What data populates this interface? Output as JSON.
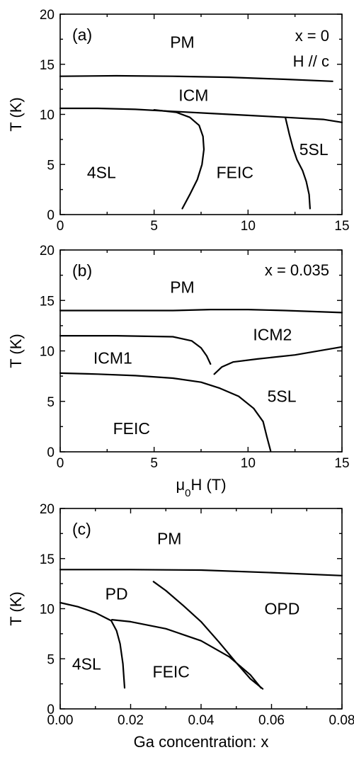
{
  "chart_data": [
    {
      "type": "line",
      "panel_label": "(a)",
      "annotations": [
        "x = 0",
        "H // c"
      ],
      "xlabel": "",
      "ylabel": "T (K)",
      "xlim": [
        0,
        15
      ],
      "ylim": [
        0,
        20
      ],
      "xticks": [
        "0",
        "5",
        "10",
        "15"
      ],
      "yticks": [
        "0",
        "5",
        "10",
        "15",
        "20"
      ],
      "regions": [
        {
          "label": "PM",
          "x": 6.5,
          "y": 17.2
        },
        {
          "label": "ICM",
          "x": 7.1,
          "y": 11.9
        },
        {
          "label": "5SL",
          "x": 13.5,
          "y": 6.5
        },
        {
          "label": "4SL",
          "x": 2.2,
          "y": 4.2
        },
        {
          "label": "FEIC",
          "x": 9.3,
          "y": 4.2
        }
      ],
      "boundaries": [
        {
          "x": [
            0,
            3,
            6,
            9,
            12,
            14.5
          ],
          "y": [
            13.8,
            13.85,
            13.8,
            13.7,
            13.5,
            13.3
          ]
        },
        {
          "x": [
            0,
            2,
            4,
            6,
            8,
            10,
            12,
            13,
            14,
            15
          ],
          "y": [
            10.6,
            10.6,
            10.5,
            10.3,
            10.1,
            9.9,
            9.7,
            9.6,
            9.5,
            9.2
          ]
        },
        {
          "x": [
            6.5,
            6.9,
            7.3,
            7.55,
            7.65,
            7.6,
            7.4,
            6.9,
            6.2,
            5.0
          ],
          "y": [
            0.6,
            2.0,
            3.5,
            5.0,
            6.5,
            7.8,
            8.9,
            9.7,
            10.2,
            10.45
          ]
        },
        {
          "x": [
            13.3,
            13.25,
            13.1,
            12.9,
            12.6,
            12.4,
            12.2,
            12.0
          ],
          "y": [
            0.6,
            2.0,
            3.3,
            4.4,
            5.5,
            6.6,
            8.0,
            9.6
          ]
        }
      ]
    },
    {
      "type": "line",
      "panel_label": "(b)",
      "annotations": [
        "x = 0.035"
      ],
      "xlabel": "μ0H (T)",
      "ylabel": "T (K)",
      "xlim": [
        0,
        15
      ],
      "ylim": [
        0,
        20
      ],
      "xticks": [
        "0",
        "5",
        "10",
        "15"
      ],
      "yticks": [
        "0",
        "5",
        "10",
        "15",
        "20"
      ],
      "regions": [
        {
          "label": "PM",
          "x": 6.5,
          "y": 16.3
        },
        {
          "label": "ICM1",
          "x": 2.8,
          "y": 9.3
        },
        {
          "label": "ICM2",
          "x": 11.3,
          "y": 11.6
        },
        {
          "label": "5SL",
          "x": 11.8,
          "y": 5.5
        },
        {
          "label": "FEIC",
          "x": 3.8,
          "y": 2.3
        }
      ],
      "boundaries": [
        {
          "x": [
            0,
            3,
            6,
            8,
            10,
            12,
            15
          ],
          "y": [
            14.0,
            14.0,
            14.0,
            14.1,
            14.1,
            14.0,
            13.8
          ]
        },
        {
          "x": [
            0,
            3,
            6,
            7,
            7.5,
            7.8,
            8.0
          ],
          "y": [
            11.5,
            11.5,
            11.4,
            11.0,
            10.3,
            9.5,
            8.7
          ]
        },
        {
          "x": [
            8.2,
            8.6,
            9.2,
            10.5,
            12.5,
            15
          ],
          "y": [
            7.7,
            8.4,
            8.9,
            9.2,
            9.6,
            10.4
          ]
        },
        {
          "x": [
            0,
            2,
            4,
            6,
            7.5,
            8.5,
            9.5,
            10.3,
            10.8,
            11.0,
            11.2
          ],
          "y": [
            7.8,
            7.7,
            7.55,
            7.3,
            6.9,
            6.3,
            5.5,
            4.3,
            3.0,
            1.5,
            0.1
          ]
        }
      ]
    },
    {
      "type": "line",
      "panel_label": "(c)",
      "annotations": [],
      "xlabel": "Ga concentration: x",
      "ylabel": "T (K)",
      "xlim": [
        0,
        0.08
      ],
      "ylim": [
        0,
        20
      ],
      "xticks": [
        "0.00",
        "0.02",
        "0.04",
        "0.06",
        "0.08"
      ],
      "yticks": [
        "0",
        "5",
        "10",
        "15",
        "20"
      ],
      "regions": [
        {
          "label": "PM",
          "x": 0.031,
          "y": 17.0
        },
        {
          "label": "PD",
          "x": 0.016,
          "y": 11.5
        },
        {
          "label": "OPD",
          "x": 0.063,
          "y": 10.0
        },
        {
          "label": "4SL",
          "x": 0.0075,
          "y": 4.5
        },
        {
          "label": "FEIC",
          "x": 0.0315,
          "y": 3.7
        }
      ],
      "boundaries": [
        {
          "x": [
            0,
            0.02,
            0.04,
            0.06,
            0.08
          ],
          "y": [
            13.9,
            13.9,
            13.85,
            13.6,
            13.3
          ]
        },
        {
          "x": [
            0,
            0.005,
            0.01,
            0.0145,
            0.016,
            0.017,
            0.0178,
            0.0183
          ],
          "y": [
            10.6,
            10.2,
            9.6,
            8.8,
            7.8,
            6.5,
            4.5,
            2.1
          ]
        },
        {
          "x": [
            0.0147,
            0.02,
            0.03,
            0.04,
            0.048,
            0.054,
            0.057
          ],
          "y": [
            8.9,
            8.7,
            8.0,
            6.8,
            5.2,
            3.4,
            2.1
          ]
        },
        {
          "x": [
            0.0265,
            0.03,
            0.035,
            0.04,
            0.045,
            0.05,
            0.054,
            0.0575
          ],
          "y": [
            12.7,
            11.8,
            10.3,
            8.7,
            6.7,
            4.6,
            3.0,
            2.0
          ]
        }
      ]
    }
  ]
}
